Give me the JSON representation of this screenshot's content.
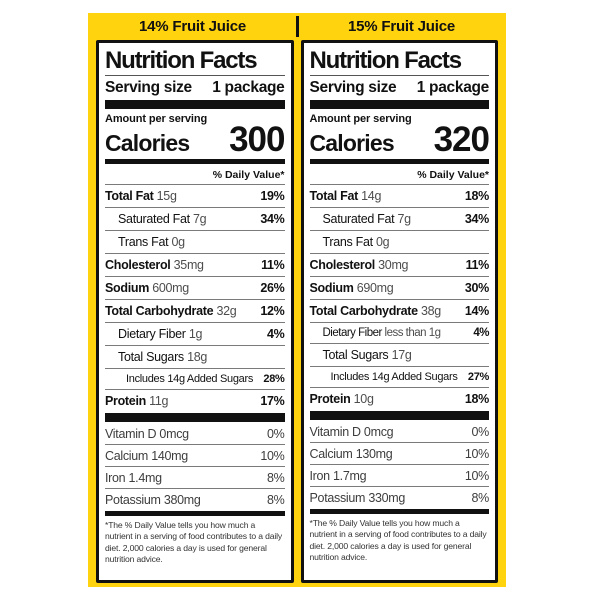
{
  "panel": {
    "background": "#FFD30D",
    "divider_color": "#111111"
  },
  "headers": [
    {
      "label": "14% Fruit Juice"
    },
    {
      "label": "15% Fruit Juice"
    }
  ],
  "labels": [
    {
      "title": "Nutrition Facts",
      "serving_size_label": "Serving size",
      "serving_size_value": "1 package",
      "amount_per_serving": "Amount per serving",
      "calories_label": "Calories",
      "calories_value": "300",
      "daily_value_header": "% Daily Value*",
      "main_rows": [
        {
          "name": "Total Fat",
          "bold": true,
          "amount": "15g",
          "pct": "19%",
          "indent": 0
        },
        {
          "name": "Saturated Fat",
          "bold": false,
          "amount": "7g",
          "pct": "34%",
          "indent": 1
        },
        {
          "name": "Trans Fat",
          "bold": false,
          "amount": "0g",
          "pct": "",
          "indent": 1
        },
        {
          "name": "Cholesterol",
          "bold": true,
          "amount": "35mg",
          "pct": "11%",
          "indent": 0
        },
        {
          "name": "Sodium",
          "bold": true,
          "amount": "600mg",
          "pct": "26%",
          "indent": 0
        },
        {
          "name": "Total Carbohydrate",
          "bold": true,
          "amount": "32g",
          "pct": "12%",
          "indent": 0
        },
        {
          "name": "Dietary Fiber",
          "bold": false,
          "amount": "1g",
          "pct": "4%",
          "indent": 1
        },
        {
          "name": "Total Sugars",
          "bold": false,
          "amount": "18g",
          "pct": "",
          "indent": 1
        },
        {
          "name": "Includes 14g Added Sugars",
          "bold": false,
          "amount": "",
          "pct": "28%",
          "indent": 2,
          "small": true
        },
        {
          "name": "Protein",
          "bold": true,
          "amount": "11g",
          "pct": "17%",
          "indent": 0
        }
      ],
      "vitamin_rows": [
        {
          "name": "Vitamin D 0mcg",
          "pct": "0%"
        },
        {
          "name": "Calcium 140mg",
          "pct": "10%"
        },
        {
          "name": "Iron 1.4mg",
          "pct": "8%"
        },
        {
          "name": "Potassium 380mg",
          "pct": "8%"
        }
      ],
      "footnote": "*The % Daily Value tells you how much a nutrient in a serving of food contributes to a daily diet. 2,000 calories a day is used for general nutrition advice."
    },
    {
      "title": "Nutrition Facts",
      "serving_size_label": "Serving size",
      "serving_size_value": "1 package",
      "amount_per_serving": "Amount per serving",
      "calories_label": "Calories",
      "calories_value": "320",
      "daily_value_header": "% Daily Value*",
      "main_rows": [
        {
          "name": "Total Fat",
          "bold": true,
          "amount": "14g",
          "pct": "18%",
          "indent": 0
        },
        {
          "name": "Saturated Fat",
          "bold": false,
          "amount": "7g",
          "pct": "34%",
          "indent": 1
        },
        {
          "name": "Trans Fat",
          "bold": false,
          "amount": "0g",
          "pct": "",
          "indent": 1
        },
        {
          "name": "Cholesterol",
          "bold": true,
          "amount": "30mg",
          "pct": "11%",
          "indent": 0
        },
        {
          "name": "Sodium",
          "bold": true,
          "amount": "690mg",
          "pct": "30%",
          "indent": 0
        },
        {
          "name": "Total Carbohydrate",
          "bold": true,
          "amount": "38g",
          "pct": "14%",
          "indent": 0
        },
        {
          "name": "Dietary Fiber",
          "bold": false,
          "amount": "less than 1g",
          "pct": "4%",
          "indent": 1,
          "condensed": true
        },
        {
          "name": "Total Sugars",
          "bold": false,
          "amount": "17g",
          "pct": "",
          "indent": 1
        },
        {
          "name": "Includes 14g Added Sugars",
          "bold": false,
          "amount": "",
          "pct": "27%",
          "indent": 2,
          "small": true
        },
        {
          "name": "Protein",
          "bold": true,
          "amount": "10g",
          "pct": "18%",
          "indent": 0
        }
      ],
      "vitamin_rows": [
        {
          "name": "Vitamin D 0mcg",
          "pct": "0%"
        },
        {
          "name": "Calcium 130mg",
          "pct": "10%"
        },
        {
          "name": "Iron 1.7mg",
          "pct": "10%"
        },
        {
          "name": "Potassium 330mg",
          "pct": "8%"
        }
      ],
      "footnote": "*The % Daily Value tells you how much a nutrient in a serving of food contributes to a daily diet. 2,000 calories a day is used for general nutrition advice."
    }
  ]
}
